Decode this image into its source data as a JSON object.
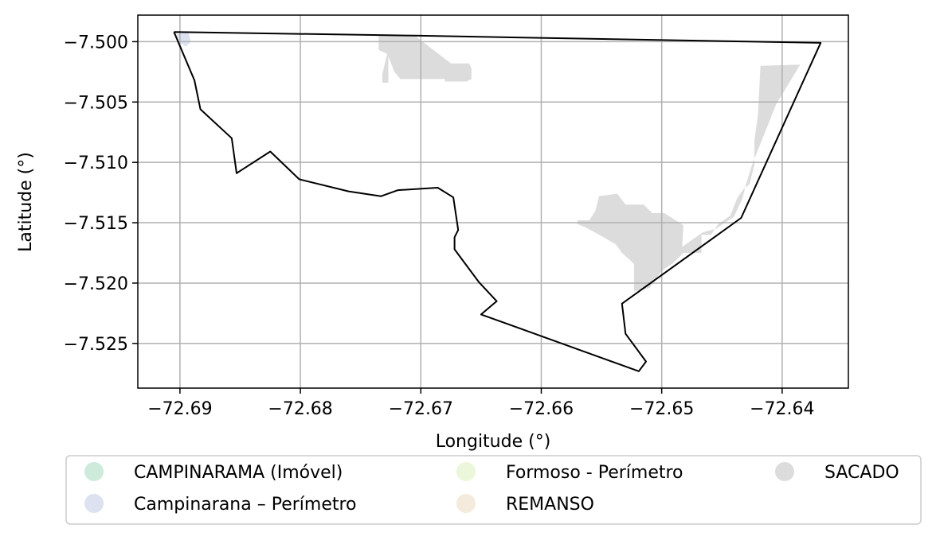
{
  "chart_data": {
    "type": "map",
    "xlabel": "Longitude (°)",
    "ylabel": "Latitude (°)",
    "xlim": [
      -72.6935,
      -72.6345
    ],
    "ylim": [
      -7.5287,
      -7.4978
    ],
    "grid": true,
    "x_ticks": [
      {
        "value": -72.69,
        "label": "−72.69"
      },
      {
        "value": -72.68,
        "label": "−72.68"
      },
      {
        "value": -72.67,
        "label": "−72.67"
      },
      {
        "value": -72.66,
        "label": "−72.66"
      },
      {
        "value": -72.65,
        "label": "−72.65"
      },
      {
        "value": -72.64,
        "label": "−72.64"
      }
    ],
    "y_ticks": [
      {
        "value": -7.5,
        "label": "−7.500"
      },
      {
        "value": -7.505,
        "label": "−7.505"
      },
      {
        "value": -7.51,
        "label": "−7.510"
      },
      {
        "value": -7.515,
        "label": "−7.515"
      },
      {
        "value": -7.52,
        "label": "−7.520"
      },
      {
        "value": -7.525,
        "label": "−7.525"
      }
    ],
    "legend": {
      "placement": "below",
      "entries": [
        {
          "label": "CAMPINARAMA (Imóvel)",
          "color": "#cdeadb"
        },
        {
          "label": "Campinarana – Perímetro",
          "color": "#dde2f0"
        },
        {
          "label": "Formoso - Perímetro",
          "color": "#ebf6da"
        },
        {
          "label": "REMANSO",
          "color": "#f4ebdc"
        },
        {
          "label": "SACADO",
          "color": "#dcdcdc"
        }
      ]
    },
    "boundary": {
      "stroke": "#000000",
      "points": [
        [
          -72.6905,
          -7.4992
        ],
        [
          -72.6705,
          -7.4995
        ],
        [
          -72.6368,
          -7.5001
        ],
        [
          -72.6434,
          -7.5146
        ],
        [
          -72.6533,
          -7.5217
        ],
        [
          -72.653,
          -7.5242
        ],
        [
          -72.6513,
          -7.5265
        ],
        [
          -72.6519,
          -7.5273
        ],
        [
          -72.665,
          -7.5226
        ],
        [
          -72.6637,
          -7.5215
        ],
        [
          -72.6652,
          -7.5199
        ],
        [
          -72.6672,
          -7.5172
        ],
        [
          -72.6672,
          -7.5162
        ],
        [
          -72.6669,
          -7.5156
        ],
        [
          -72.6673,
          -7.5129
        ],
        [
          -72.6686,
          -7.5121
        ],
        [
          -72.6719,
          -7.5123
        ],
        [
          -72.6733,
          -7.5128
        ],
        [
          -72.676,
          -7.5124
        ],
        [
          -72.6801,
          -7.5114
        ],
        [
          -72.6825,
          -7.5091
        ],
        [
          -72.6853,
          -7.5109
        ],
        [
          -72.6857,
          -7.508
        ],
        [
          -72.6883,
          -7.5056
        ],
        [
          -72.6888,
          -7.5032
        ],
        [
          -72.6905,
          -7.4992
        ]
      ]
    },
    "areas": [
      {
        "name": "Campinarana – Perímetro",
        "color": "#dde2f0",
        "points": [
          [
            -72.6903,
            -7.4994
          ],
          [
            -72.6893,
            -7.4992
          ],
          [
            -72.6891,
            -7.5
          ],
          [
            -72.6895,
            -7.5004
          ],
          [
            -72.69,
            -7.5001
          ]
        ]
      },
      {
        "name": "SACADO",
        "color": "#dcdcdc",
        "points": [
          [
            -72.6735,
            -7.4995
          ],
          [
            -72.6705,
            -7.4995
          ],
          [
            -72.6692,
            -7.5005
          ],
          [
            -72.6675,
            -7.5018
          ],
          [
            -72.666,
            -7.5018
          ],
          [
            -72.6658,
            -7.5022
          ],
          [
            -72.6658,
            -7.5031
          ],
          [
            -72.6662,
            -7.5033
          ],
          [
            -72.668,
            -7.5033
          ],
          [
            -72.668,
            -7.5031
          ],
          [
            -72.6717,
            -7.5031
          ],
          [
            -72.6722,
            -7.5025
          ],
          [
            -72.6727,
            -7.5012
          ],
          [
            -72.6727,
            -7.5026
          ],
          [
            -72.6727,
            -7.5034
          ],
          [
            -72.6732,
            -7.5034
          ],
          [
            -72.6732,
            -7.5027
          ],
          [
            -72.6728,
            -7.501
          ],
          [
            -72.6735,
            -7.5007
          ]
        ]
      },
      {
        "name": "SACADO",
        "color": "#dcdcdc",
        "points": [
          [
            -72.6418,
            -7.502
          ],
          [
            -72.642,
            -7.506
          ],
          [
            -72.6423,
            -7.5082
          ],
          [
            -72.6423,
            -7.5102
          ],
          [
            -72.6427,
            -7.5118
          ],
          [
            -72.6432,
            -7.5122
          ],
          [
            -72.6437,
            -7.5129
          ],
          [
            -72.6443,
            -7.5144
          ],
          [
            -72.6453,
            -7.5151
          ],
          [
            -72.6459,
            -7.516
          ],
          [
            -72.6467,
            -7.516
          ],
          [
            -72.6467,
            -7.5175
          ],
          [
            -72.6482,
            -7.5175
          ],
          [
            -72.649,
            -7.5183
          ],
          [
            -72.65,
            -7.519
          ],
          [
            -72.651,
            -7.5204
          ],
          [
            -72.6523,
            -7.5207
          ],
          [
            -72.6523,
            -7.5184
          ],
          [
            -72.6533,
            -7.5175
          ],
          [
            -72.6538,
            -7.5168
          ],
          [
            -72.655,
            -7.5161
          ],
          [
            -72.6563,
            -7.5154
          ],
          [
            -72.657,
            -7.5151
          ],
          [
            -72.657,
            -7.5148
          ],
          [
            -72.656,
            -7.5148
          ],
          [
            -72.6555,
            -7.514
          ],
          [
            -72.6552,
            -7.5128
          ],
          [
            -72.6537,
            -7.5126
          ],
          [
            -72.653,
            -7.5135
          ],
          [
            -72.6515,
            -7.5135
          ],
          [
            -72.6508,
            -7.5142
          ],
          [
            -72.6498,
            -7.5142
          ],
          [
            -72.6482,
            -7.5152
          ],
          [
            -72.6483,
            -7.517
          ],
          [
            -72.6466,
            -7.5158
          ],
          [
            -72.6455,
            -7.5155
          ],
          [
            -72.644,
            -7.5145
          ],
          [
            -72.6433,
            -7.513
          ],
          [
            -72.643,
            -7.5118
          ],
          [
            -72.6425,
            -7.5102
          ],
          [
            -72.6405,
            -7.5052
          ],
          [
            -72.6385,
            -7.5019
          ]
        ]
      }
    ]
  }
}
